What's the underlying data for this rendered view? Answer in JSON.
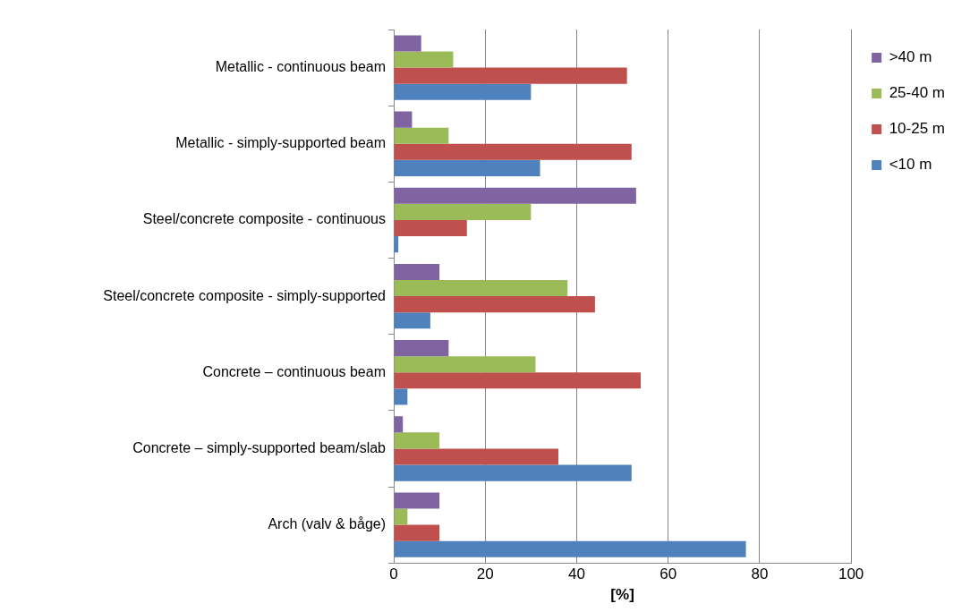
{
  "chart_data": {
    "type": "bar",
    "orientation": "horizontal",
    "xlabel": "[%]",
    "categories": [
      "Metallic - continuous beam",
      "Metallic - simply-supported beam",
      "Steel/concrete composite - continuous",
      "Steel/concrete composite - simply-supported",
      "Concrete – continuous beam",
      "Concrete – simply-supported beam/slab",
      "Arch (valv & båge)"
    ],
    "series": [
      {
        "name": ">40 m",
        "color": "#8064a2",
        "values": [
          6,
          4,
          53,
          10,
          12,
          2,
          10
        ]
      },
      {
        "name": "25-40 m",
        "color": "#9bbb59",
        "values": [
          13,
          12,
          30,
          38,
          31,
          10,
          3
        ]
      },
      {
        "name": "10-25 m",
        "color": "#c0504d",
        "values": [
          51,
          52,
          16,
          44,
          54,
          36,
          10
        ]
      },
      {
        "name": "<10 m",
        "color": "#4f81bd",
        "values": [
          30,
          32,
          1,
          8,
          3,
          52,
          77
        ]
      }
    ],
    "xlim": [
      0,
      100
    ],
    "xticks": [
      0,
      20,
      40,
      60,
      80,
      100
    ],
    "grid": "x",
    "legend": "top right"
  }
}
